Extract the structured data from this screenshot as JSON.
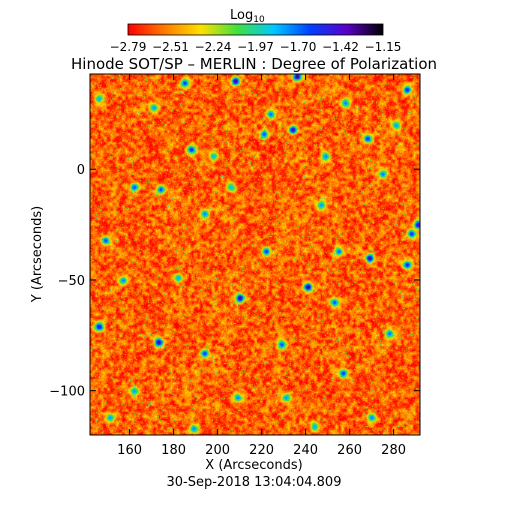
{
  "chart_data": {
    "type": "heatmap",
    "title": "Hinode SOT/SP – MERLIN : Degree of Polarization",
    "xlabel": "X (Arcseconds)",
    "ylabel": "Y (Arcseconds)",
    "timestamp": "30-Sep-2018 13:04:04.809",
    "colorbar": {
      "title_base": "Log",
      "title_sub": "10",
      "tick_labels": [
        "-2.79",
        "-2.51",
        "-2.24",
        "-1.97",
        "-1.70",
        "-1.42",
        "-1.15"
      ],
      "range": [
        -2.79,
        -1.15
      ],
      "colormap": [
        "#ff0000",
        "#ff7a00",
        "#ffe000",
        "#40e040",
        "#00c8ff",
        "#0040ff",
        "#5a00c8",
        "#000000"
      ]
    },
    "xlim": [
      142,
      292
    ],
    "ylim": [
      -120,
      43
    ],
    "x_ticks": [
      160,
      180,
      200,
      220,
      240,
      260,
      280
    ],
    "x_tick_labels": [
      "160",
      "180",
      "200",
      "220",
      "240",
      "260",
      "280"
    ],
    "y_ticks": [
      0,
      -50,
      -100
    ],
    "y_tick_labels": [
      "0",
      "-50",
      "-100"
    ],
    "background_value": -2.6,
    "features": [
      {
        "x": 185,
        "y": 39,
        "v": -1.55
      },
      {
        "x": 208,
        "y": 40,
        "v": -1.3
      },
      {
        "x": 236,
        "y": 42,
        "v": -1.25
      },
      {
        "x": 286,
        "y": 36,
        "v": -1.5
      },
      {
        "x": 146,
        "y": 32,
        "v": -1.8
      },
      {
        "x": 171,
        "y": 28,
        "v": -1.75
      },
      {
        "x": 258,
        "y": 30,
        "v": -1.7
      },
      {
        "x": 224,
        "y": 25,
        "v": -1.65
      },
      {
        "x": 234,
        "y": 18,
        "v": -1.35
      },
      {
        "x": 188,
        "y": 9,
        "v": -1.5
      },
      {
        "x": 221,
        "y": 16,
        "v": -1.6
      },
      {
        "x": 268,
        "y": 14,
        "v": -1.55
      },
      {
        "x": 249,
        "y": 6,
        "v": -1.7
      },
      {
        "x": 281,
        "y": 20,
        "v": -1.75
      },
      {
        "x": 198,
        "y": 6,
        "v": -1.8
      },
      {
        "x": 162,
        "y": -8,
        "v": -1.6
      },
      {
        "x": 174,
        "y": -9,
        "v": -1.6
      },
      {
        "x": 206,
        "y": -8,
        "v": -1.85
      },
      {
        "x": 275,
        "y": -2,
        "v": -1.7
      },
      {
        "x": 194,
        "y": -20,
        "v": -1.7
      },
      {
        "x": 247,
        "y": -16,
        "v": -1.75
      },
      {
        "x": 291,
        "y": -25,
        "v": -1.35
      },
      {
        "x": 288,
        "y": -29,
        "v": -1.5
      },
      {
        "x": 149,
        "y": -32,
        "v": -1.6
      },
      {
        "x": 222,
        "y": -37,
        "v": -1.55
      },
      {
        "x": 255,
        "y": -37,
        "v": -1.65
      },
      {
        "x": 269,
        "y": -40,
        "v": -1.3
      },
      {
        "x": 286,
        "y": -43,
        "v": -1.45
      },
      {
        "x": 157,
        "y": -50,
        "v": -1.7
      },
      {
        "x": 241,
        "y": -53,
        "v": -1.25
      },
      {
        "x": 182,
        "y": -49,
        "v": -1.8
      },
      {
        "x": 210,
        "y": -58,
        "v": -1.3
      },
      {
        "x": 253,
        "y": -60,
        "v": -1.6
      },
      {
        "x": 146,
        "y": -71,
        "v": -1.4
      },
      {
        "x": 173,
        "y": -78,
        "v": -1.3
      },
      {
        "x": 194,
        "y": -83,
        "v": -1.55
      },
      {
        "x": 229,
        "y": -79,
        "v": -1.6
      },
      {
        "x": 278,
        "y": -74,
        "v": -1.65
      },
      {
        "x": 257,
        "y": -92,
        "v": -1.55
      },
      {
        "x": 162,
        "y": -100,
        "v": -1.75
      },
      {
        "x": 209,
        "y": -103,
        "v": -1.7
      },
      {
        "x": 231,
        "y": -103,
        "v": -1.75
      },
      {
        "x": 151,
        "y": -112,
        "v": -1.75
      },
      {
        "x": 270,
        "y": -112,
        "v": -1.7
      },
      {
        "x": 189,
        "y": -117,
        "v": -1.7
      },
      {
        "x": 244,
        "y": -116,
        "v": -1.8
      }
    ]
  }
}
